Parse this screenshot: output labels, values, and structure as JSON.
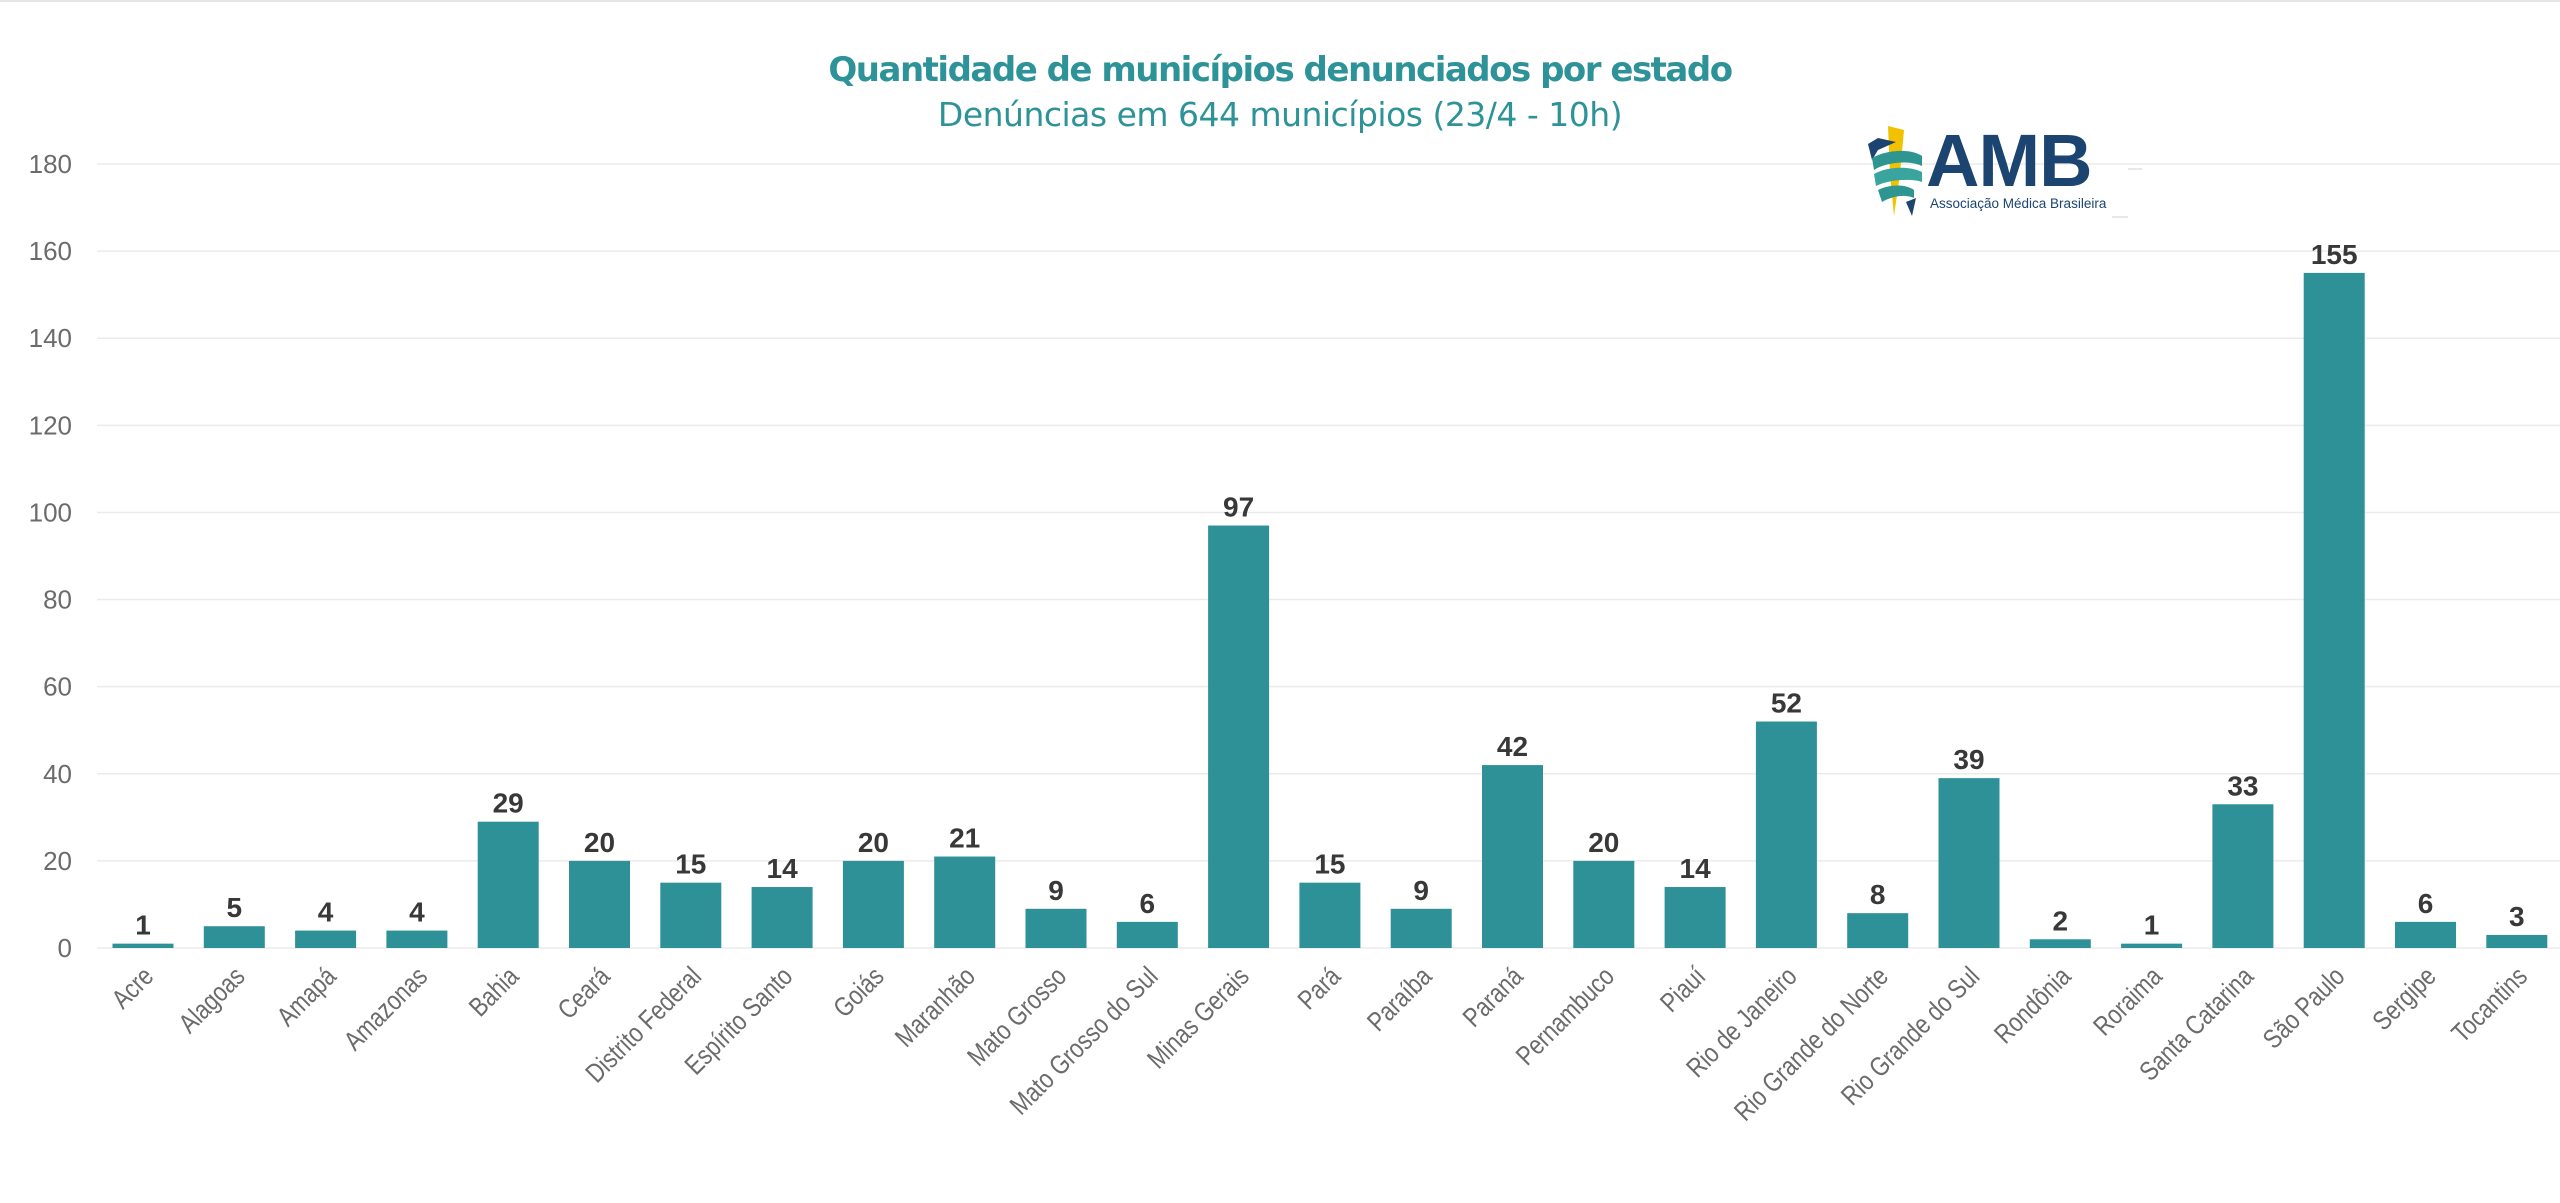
{
  "colors": {
    "bar": "#2E9198",
    "title": "#2E9398",
    "value_label": "#383838",
    "tick_label": "#6B6B6B",
    "grid": "#EBEBEB",
    "logo_navy": "#1B4470",
    "logo_yellow": "#F2C200",
    "logo_teal": "#2E9590"
  },
  "logo": {
    "name": "AMB",
    "subtitle": "Associação Médica Brasileira"
  },
  "chart_data": {
    "type": "bar",
    "title": "Quantidade de municípios denunciados por estado",
    "subtitle": "Denúncias em 644 municípios (23/4 - 10h)",
    "xlabel": "",
    "ylabel": "",
    "ylim": [
      0,
      180
    ],
    "yticks": [
      0,
      20,
      40,
      60,
      80,
      100,
      120,
      140,
      160,
      180
    ],
    "grid": true,
    "legend": "none",
    "data_labels": true,
    "categories": [
      "Acre",
      "Alagoas",
      "Amapá",
      "Amazonas",
      "Bahia",
      "Ceará",
      "Distrito Federal",
      "Espírito Santo",
      "Goiás",
      "Maranhão",
      "Mato Grosso",
      "Mato Grosso do Sul",
      "Minas Gerais",
      "Pará",
      "Paraíba",
      "Paraná",
      "Pernambuco",
      "Piauí",
      "Rio de Janeiro",
      "Rio Grande do Norte",
      "Rio Grande do Sul",
      "Rondônia",
      "Roraima",
      "Santa Catarina",
      "São Paulo",
      "Sergipe",
      "Tocantins"
    ],
    "values": [
      1,
      5,
      4,
      4,
      29,
      20,
      15,
      14,
      20,
      21,
      9,
      6,
      97,
      15,
      9,
      42,
      20,
      14,
      52,
      8,
      39,
      2,
      1,
      33,
      155,
      6,
      3
    ]
  }
}
